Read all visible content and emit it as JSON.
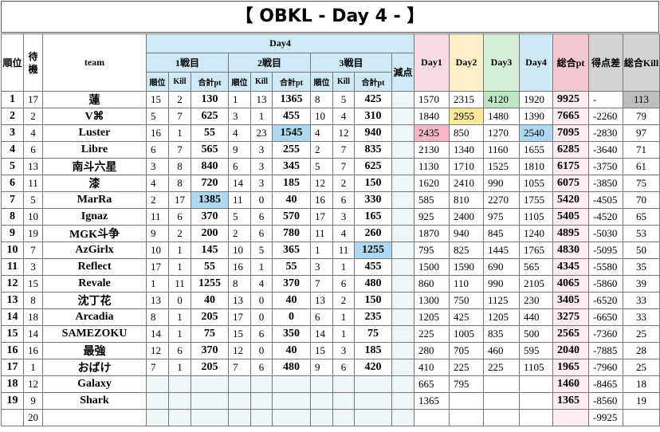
{
  "header": {
    "title": "【 OBKL - Day 4 - 】",
    "rank": "順位",
    "standby": "待機",
    "team": "team",
    "day4_group": "Day4",
    "games": [
      "1戦目",
      "2戦目",
      "3戦目"
    ],
    "sub": [
      "順位",
      "Kill",
      "合計pt"
    ],
    "penalty": "減点",
    "days": [
      "Day1",
      "Day2",
      "Day3",
      "Day4"
    ],
    "total_pt": "総合pt",
    "diff": "得点差",
    "total_kill": "総合Kill"
  },
  "table": {
    "rows": [
      [
        1,
        17,
        "蓮",
        15,
        2,
        130,
        1,
        13,
        1365,
        8,
        5,
        425,
        null,
        1570,
        2315,
        4120,
        1920,
        9925,
        "-",
        113
      ],
      [
        2,
        2,
        "V⌘",
        5,
        7,
        625,
        3,
        1,
        455,
        10,
        4,
        310,
        null,
        1840,
        2955,
        1480,
        1390,
        7665,
        -2260,
        79
      ],
      [
        3,
        4,
        "Luster",
        16,
        1,
        55,
        4,
        23,
        1545,
        4,
        12,
        940,
        null,
        2435,
        850,
        1270,
        2540,
        7095,
        -2830,
        97
      ],
      [
        4,
        6,
        "Libre",
        6,
        7,
        565,
        9,
        3,
        255,
        2,
        7,
        835,
        null,
        2130,
        1340,
        1160,
        1655,
        6285,
        -3640,
        71
      ],
      [
        5,
        13,
        "南斗六星",
        3,
        8,
        840,
        6,
        3,
        345,
        5,
        7,
        625,
        null,
        1130,
        1710,
        1525,
        1810,
        6175,
        -3750,
        61
      ],
      [
        6,
        11,
        "漆",
        4,
        8,
        720,
        14,
        3,
        185,
        12,
        2,
        150,
        null,
        1620,
        2410,
        990,
        1055,
        6075,
        -3850,
        75
      ],
      [
        7,
        5,
        "MarRa",
        2,
        17,
        1385,
        11,
        0,
        40,
        16,
        6,
        330,
        null,
        585,
        810,
        2270,
        1755,
        5420,
        -4505,
        70
      ],
      [
        8,
        10,
        "Ignaz",
        11,
        6,
        370,
        5,
        6,
        570,
        17,
        3,
        165,
        null,
        925,
        2400,
        975,
        1105,
        5405,
        -4520,
        65
      ],
      [
        9,
        19,
        "MGK斗争",
        9,
        2,
        200,
        2,
        6,
        780,
        11,
        4,
        260,
        null,
        1870,
        940,
        845,
        1240,
        4895,
        -5030,
        53
      ],
      [
        10,
        7,
        "AzGirlx",
        10,
        1,
        145,
        10,
        5,
        365,
        1,
        11,
        1255,
        null,
        795,
        825,
        1445,
        1765,
        4830,
        -5095,
        50
      ],
      [
        11,
        3,
        "Reflect",
        17,
        1,
        55,
        16,
        1,
        55,
        3,
        1,
        455,
        null,
        1500,
        1590,
        690,
        565,
        4345,
        -5580,
        35
      ],
      [
        12,
        15,
        "Revale",
        1,
        11,
        1255,
        8,
        4,
        370,
        7,
        6,
        480,
        null,
        860,
        110,
        990,
        2105,
        4065,
        -5860,
        39
      ],
      [
        13,
        8,
        "沈丁花",
        13,
        0,
        40,
        13,
        0,
        40,
        13,
        2,
        150,
        null,
        1300,
        750,
        1125,
        230,
        3405,
        -6520,
        33
      ],
      [
        14,
        18,
        "Arcadia",
        8,
        1,
        205,
        17,
        0,
        0,
        6,
        1,
        235,
        null,
        1205,
        425,
        1205,
        440,
        3275,
        -6650,
        33
      ],
      [
        15,
        14,
        "SAMEZOKU",
        14,
        1,
        75,
        15,
        6,
        350,
        14,
        1,
        75,
        null,
        225,
        1005,
        835,
        500,
        2565,
        -7360,
        25
      ],
      [
        16,
        16,
        "最強",
        12,
        6,
        370,
        12,
        0,
        40,
        15,
        3,
        185,
        null,
        280,
        705,
        460,
        595,
        2040,
        -7885,
        28
      ],
      [
        17,
        1,
        "おばけ",
        7,
        1,
        205,
        7,
        6,
        480,
        9,
        6,
        420,
        null,
        410,
        225,
        225,
        1105,
        1965,
        -7960,
        25
      ],
      [
        18,
        12,
        "Galaxy",
        null,
        null,
        null,
        null,
        null,
        null,
        null,
        null,
        null,
        null,
        665,
        795,
        null,
        null,
        1460,
        -8465,
        18
      ],
      [
        19,
        9,
        "Shark",
        null,
        null,
        null,
        null,
        null,
        null,
        null,
        null,
        null,
        null,
        1365,
        null,
        null,
        null,
        1365,
        -8560,
        19
      ],
      [
        null,
        20,
        null,
        null,
        null,
        null,
        null,
        null,
        null,
        null,
        null,
        null,
        null,
        null,
        null,
        null,
        null,
        null,
        -9925,
        null
      ]
    ]
  }
}
